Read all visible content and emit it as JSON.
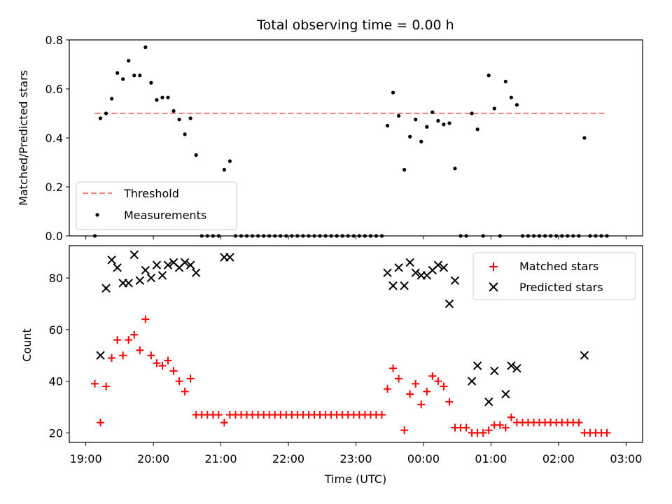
{
  "chart_data": [
    {
      "type": "scatter",
      "title": "Total observing time = 0.00 h",
      "xlabel": "",
      "ylabel": "Matched/Predicted stars",
      "xlim": [
        "19:00",
        "03:00"
      ],
      "ylim": [
        0,
        0.8
      ],
      "yticks": [
        "0.0",
        "0.2",
        "0.4",
        "0.6",
        "0.8"
      ],
      "legend_position": "lower-left",
      "threshold": {
        "name": "Threshold",
        "value": 0.5,
        "x_range": [
          "19:08",
          "02:43"
        ],
        "color": "#ff7f7f"
      },
      "series": [
        {
          "name": "Measurements",
          "color": "#000000",
          "points": [
            [
              "19:08",
              0.0
            ],
            [
              "19:13",
              0.48
            ],
            [
              "19:18",
              0.5
            ],
            [
              "19:23",
              0.56
            ],
            [
              "19:28",
              0.665
            ],
            [
              "19:33",
              0.64
            ],
            [
              "19:38",
              0.715
            ],
            [
              "19:43",
              0.655
            ],
            [
              "19:48",
              0.655
            ],
            [
              "19:53",
              0.77
            ],
            [
              "19:58",
              0.625
            ],
            [
              "20:03",
              0.555
            ],
            [
              "20:08",
              0.565
            ],
            [
              "20:13",
              0.565
            ],
            [
              "20:18",
              0.51
            ],
            [
              "20:23",
              0.475
            ],
            [
              "20:28",
              0.415
            ],
            [
              "20:33",
              0.48
            ],
            [
              "20:38",
              0.33
            ],
            [
              "20:43",
              0.0
            ],
            [
              "20:48",
              0.0
            ],
            [
              "20:53",
              0.0
            ],
            [
              "20:58",
              0.0
            ],
            [
              "21:03",
              0.27
            ],
            [
              "21:08",
              0.305
            ],
            [
              "21:13",
              0.0
            ],
            [
              "21:18",
              0.0
            ],
            [
              "21:23",
              0.0
            ],
            [
              "21:28",
              0.0
            ],
            [
              "21:33",
              0.0
            ],
            [
              "21:38",
              0.0
            ],
            [
              "21:43",
              0.0
            ],
            [
              "21:48",
              0.0
            ],
            [
              "21:53",
              0.0
            ],
            [
              "21:58",
              0.0
            ],
            [
              "22:03",
              0.0
            ],
            [
              "22:08",
              0.0
            ],
            [
              "22:13",
              0.0
            ],
            [
              "22:18",
              0.0
            ],
            [
              "22:23",
              0.0
            ],
            [
              "22:28",
              0.0
            ],
            [
              "22:33",
              0.0
            ],
            [
              "22:38",
              0.0
            ],
            [
              "22:43",
              0.0
            ],
            [
              "22:48",
              0.0
            ],
            [
              "22:53",
              0.0
            ],
            [
              "22:58",
              0.0
            ],
            [
              "23:03",
              0.0
            ],
            [
              "23:08",
              0.0
            ],
            [
              "23:13",
              0.0
            ],
            [
              "23:18",
              0.0
            ],
            [
              "23:23",
              0.0
            ],
            [
              "23:28",
              0.45
            ],
            [
              "23:33",
              0.585
            ],
            [
              "23:38",
              0.49
            ],
            [
              "23:43",
              0.27
            ],
            [
              "23:48",
              0.405
            ],
            [
              "23:53",
              0.475
            ],
            [
              "23:58",
              0.385
            ],
            [
              "00:03",
              0.445
            ],
            [
              "00:08",
              0.505
            ],
            [
              "00:13",
              0.47
            ],
            [
              "00:18",
              0.455
            ],
            [
              "00:23",
              0.46
            ],
            [
              "00:28",
              0.275
            ],
            [
              "00:33",
              0.0
            ],
            [
              "00:38",
              0.0
            ],
            [
              "00:43",
              0.5
            ],
            [
              "00:48",
              0.435
            ],
            [
              "00:53",
              0.0
            ],
            [
              "00:58",
              0.655
            ],
            [
              "01:03",
              0.52
            ],
            [
              "01:08",
              0.0
            ],
            [
              "01:13",
              0.63
            ],
            [
              "01:18",
              0.565
            ],
            [
              "01:23",
              0.535
            ],
            [
              "01:28",
              0.0
            ],
            [
              "01:33",
              0.0
            ],
            [
              "01:38",
              0.0
            ],
            [
              "01:43",
              0.0
            ],
            [
              "01:48",
              0.0
            ],
            [
              "01:53",
              0.0
            ],
            [
              "01:58",
              0.0
            ],
            [
              "02:03",
              0.0
            ],
            [
              "02:08",
              0.0
            ],
            [
              "02:13",
              0.0
            ],
            [
              "02:18",
              0.0
            ],
            [
              "02:23",
              0.4
            ],
            [
              "02:28",
              0.0
            ],
            [
              "02:33",
              0.0
            ],
            [
              "02:38",
              0.0
            ],
            [
              "02:43",
              0.0
            ]
          ]
        }
      ]
    },
    {
      "type": "scatter",
      "title": "",
      "xlabel": "Time (UTC)",
      "ylabel": "Count",
      "xlim": [
        "19:00",
        "03:00"
      ],
      "ylim": [
        16.3,
        92.5
      ],
      "yticks": [
        "20",
        "40",
        "60",
        "80"
      ],
      "xticks": [
        "19:00",
        "20:00",
        "21:00",
        "22:00",
        "23:00",
        "00:00",
        "01:00",
        "02:00",
        "03:00"
      ],
      "legend_position": "upper-right",
      "series": [
        {
          "name": "Matched stars",
          "color": "#ff0000",
          "marker": "plus",
          "points": [
            [
              "19:08",
              39
            ],
            [
              "19:13",
              24
            ],
            [
              "19:18",
              38
            ],
            [
              "19:23",
              49
            ],
            [
              "19:28",
              56
            ],
            [
              "19:33",
              50
            ],
            [
              "19:38",
              56
            ],
            [
              "19:43",
              58
            ],
            [
              "19:48",
              52
            ],
            [
              "19:53",
              64
            ],
            [
              "19:58",
              50
            ],
            [
              "20:03",
              47
            ],
            [
              "20:08",
              46
            ],
            [
              "20:13",
              48
            ],
            [
              "20:18",
              44
            ],
            [
              "20:23",
              40
            ],
            [
              "20:28",
              36
            ],
            [
              "20:33",
              41
            ],
            [
              "20:38",
              27
            ],
            [
              "20:43",
              27
            ],
            [
              "20:48",
              27
            ],
            [
              "20:53",
              27
            ],
            [
              "20:58",
              27
            ],
            [
              "21:03",
              24
            ],
            [
              "21:08",
              27
            ],
            [
              "21:13",
              27
            ],
            [
              "21:18",
              27
            ],
            [
              "21:23",
              27
            ],
            [
              "21:28",
              27
            ],
            [
              "21:33",
              27
            ],
            [
              "21:38",
              27
            ],
            [
              "21:43",
              27
            ],
            [
              "21:48",
              27
            ],
            [
              "21:53",
              27
            ],
            [
              "21:58",
              27
            ],
            [
              "22:03",
              27
            ],
            [
              "22:08",
              27
            ],
            [
              "22:13",
              27
            ],
            [
              "22:18",
              27
            ],
            [
              "22:23",
              27
            ],
            [
              "22:28",
              27
            ],
            [
              "22:33",
              27
            ],
            [
              "22:38",
              27
            ],
            [
              "22:43",
              27
            ],
            [
              "22:48",
              27
            ],
            [
              "22:53",
              27
            ],
            [
              "22:58",
              27
            ],
            [
              "23:03",
              27
            ],
            [
              "23:08",
              27
            ],
            [
              "23:13",
              27
            ],
            [
              "23:18",
              27
            ],
            [
              "23:23",
              27
            ],
            [
              "23:28",
              37
            ],
            [
              "23:33",
              45
            ],
            [
              "23:38",
              41
            ],
            [
              "23:43",
              21
            ],
            [
              "23:48",
              35
            ],
            [
              "23:53",
              39
            ],
            [
              "23:58",
              31
            ],
            [
              "00:03",
              36
            ],
            [
              "00:08",
              42
            ],
            [
              "00:13",
              40
            ],
            [
              "00:18",
              38
            ],
            [
              "00:23",
              32
            ],
            [
              "00:28",
              22
            ],
            [
              "00:33",
              22
            ],
            [
              "00:38",
              22
            ],
            [
              "00:43",
              20
            ],
            [
              "00:48",
              20
            ],
            [
              "00:53",
              20
            ],
            [
              "00:58",
              21
            ],
            [
              "01:03",
              23
            ],
            [
              "01:08",
              23
            ],
            [
              "01:13",
              22
            ],
            [
              "01:18",
              26
            ],
            [
              "01:23",
              24
            ],
            [
              "01:28",
              24
            ],
            [
              "01:33",
              24
            ],
            [
              "01:38",
              24
            ],
            [
              "01:43",
              24
            ],
            [
              "01:48",
              24
            ],
            [
              "01:53",
              24
            ],
            [
              "01:58",
              24
            ],
            [
              "02:03",
              24
            ],
            [
              "02:08",
              24
            ],
            [
              "02:13",
              24
            ],
            [
              "02:18",
              24
            ],
            [
              "02:23",
              20
            ],
            [
              "02:28",
              20
            ],
            [
              "02:33",
              20
            ],
            [
              "02:38",
              20
            ],
            [
              "02:43",
              20
            ]
          ]
        },
        {
          "name": "Predicted stars",
          "color": "#000000",
          "marker": "x",
          "points": [
            [
              "19:13",
              50
            ],
            [
              "19:18",
              76
            ],
            [
              "19:23",
              87
            ],
            [
              "19:28",
              84
            ],
            [
              "19:33",
              78
            ],
            [
              "19:38",
              78
            ],
            [
              "19:43",
              89
            ],
            [
              "19:48",
              79
            ],
            [
              "19:53",
              83
            ],
            [
              "19:58",
              80
            ],
            [
              "20:03",
              85
            ],
            [
              "20:08",
              81
            ],
            [
              "20:13",
              85
            ],
            [
              "20:18",
              86
            ],
            [
              "20:23",
              84
            ],
            [
              "20:28",
              86
            ],
            [
              "20:33",
              85
            ],
            [
              "20:38",
              82
            ],
            [
              "21:03",
              88
            ],
            [
              "21:08",
              88
            ],
            [
              "23:28",
              82
            ],
            [
              "23:33",
              77
            ],
            [
              "23:38",
              84
            ],
            [
              "23:43",
              77
            ],
            [
              "23:48",
              86
            ],
            [
              "23:53",
              82
            ],
            [
              "23:58",
              81
            ],
            [
              "00:03",
              81
            ],
            [
              "00:08",
              83
            ],
            [
              "00:13",
              85
            ],
            [
              "00:18",
              84
            ],
            [
              "00:23",
              70
            ],
            [
              "00:28",
              79
            ],
            [
              "00:43",
              40
            ],
            [
              "00:48",
              46
            ],
            [
              "00:58",
              32
            ],
            [
              "01:03",
              44
            ],
            [
              "01:13",
              35
            ],
            [
              "01:18",
              46
            ],
            [
              "01:23",
              45
            ],
            [
              "02:23",
              50
            ]
          ]
        }
      ]
    }
  ]
}
